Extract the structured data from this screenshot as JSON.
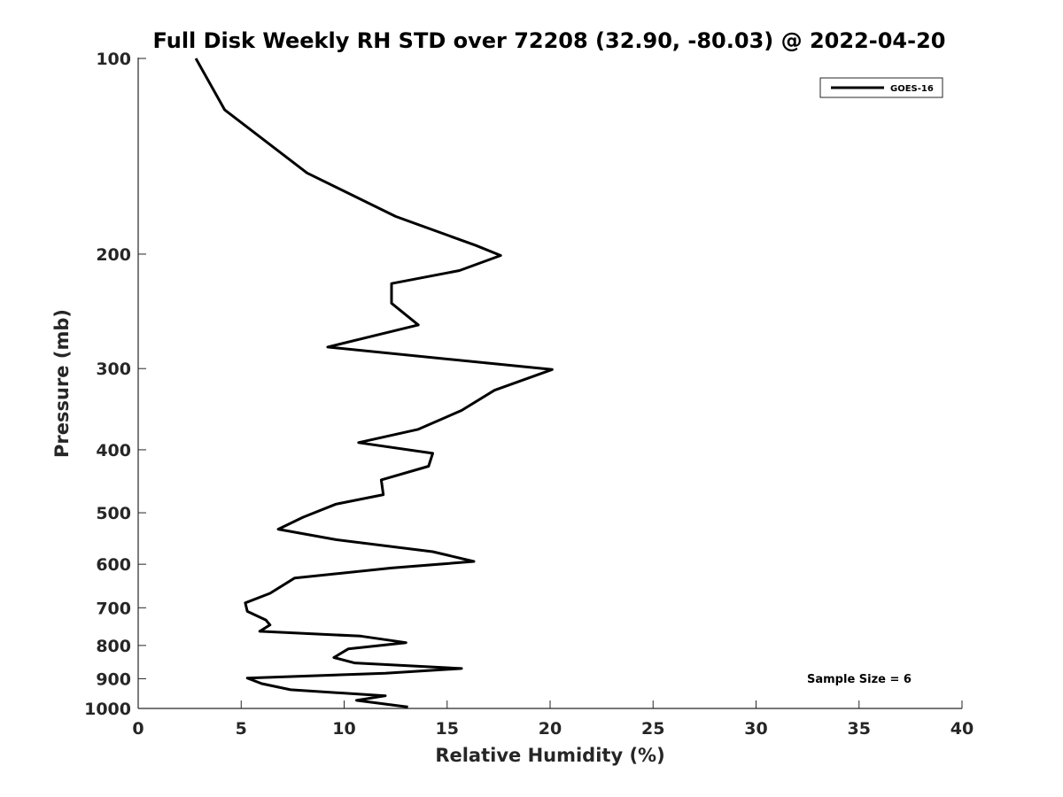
{
  "chart_data": {
    "type": "line",
    "title": "Full Disk Weekly RH STD over 72208 (32.90, -80.03) @ 2022-04-20",
    "xlabel": "Relative Humidity (%)",
    "ylabel": "Pressure (mb)",
    "xlim": [
      0,
      40
    ],
    "ylim": [
      100,
      1000
    ],
    "y_scale": "log",
    "y_reversed": true,
    "x_ticks": [
      "0",
      "5",
      "10",
      "15",
      "20",
      "25",
      "30",
      "35",
      "40"
    ],
    "y_ticks": [
      "100",
      "200",
      "300",
      "400",
      "500",
      "600",
      "700",
      "800",
      "900",
      "1000"
    ],
    "grid": false,
    "legend": {
      "position": "top-right",
      "entries": [
        "GOES-16"
      ]
    },
    "annotation": "Sample Size = 6",
    "series": [
      {
        "name": "GOES-16",
        "color": "#000000",
        "x": [
          2.8,
          4.2,
          8.2,
          12.5,
          16.4,
          17.6,
          15.6,
          12.3,
          12.3,
          13.6,
          9.2,
          20.1,
          17.3,
          15.7,
          13.6,
          10.7,
          14.3,
          14.1,
          11.8,
          11.9,
          9.6,
          8.0,
          6.8,
          9.6,
          14.3,
          16.3,
          12.3,
          7.6,
          6.4,
          5.2,
          5.3,
          6.2,
          6.4,
          5.9,
          10.8,
          13.0,
          10.2,
          9.5,
          10.5,
          15.7,
          12.0,
          5.3,
          6.0,
          7.4,
          12.0,
          10.6,
          13.1
        ],
        "y": [
          100,
          120,
          150,
          175,
          194,
          201,
          212,
          222,
          238,
          257,
          278,
          301,
          324,
          348,
          372,
          390,
          405,
          424,
          445,
          469,
          485,
          508,
          530,
          550,
          574,
          594,
          608,
          630,
          665,
          688,
          709,
          731,
          744,
          761,
          774,
          792,
          810,
          835,
          851,
          868,
          883,
          898,
          916,
          936,
          956,
          972,
          995
        ]
      }
    ]
  }
}
